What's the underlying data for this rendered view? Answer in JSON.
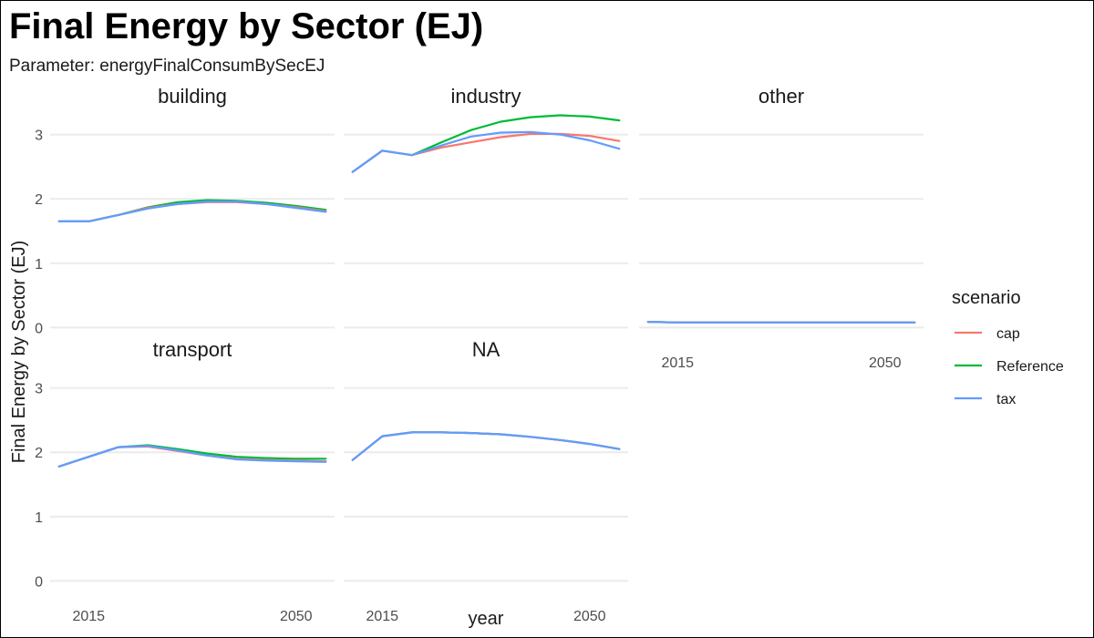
{
  "chart_data": {
    "type": "line",
    "title": "Final Energy by Sector (EJ)",
    "subtitle": "Parameter: energyFinalConsumBySecEJ",
    "xlabel": "year",
    "ylabel": "Final Energy by Sector (EJ)",
    "x": [
      2010,
      2015,
      2020,
      2025,
      2030,
      2035,
      2040,
      2045,
      2050,
      2055
    ],
    "xticks": [
      "2015",
      "2050"
    ],
    "xtick_values": [
      2015,
      2050
    ],
    "ylim": [
      -0.15,
      3.25
    ],
    "yticks": [
      0,
      1,
      2,
      3
    ],
    "grid": true,
    "legend": {
      "title": "scenario",
      "position": "right",
      "entries": [
        "cap",
        "Reference",
        "tax"
      ]
    },
    "colors": {
      "cap": "#F8766D",
      "Reference": "#00BA38",
      "tax": "#619CFF"
    },
    "facets": [
      {
        "name": "building",
        "series": [
          {
            "name": "cap",
            "values": [
              1.65,
              1.65,
              1.75,
              1.86,
              1.92,
              1.95,
              1.95,
              1.92,
              1.87,
              1.81
            ]
          },
          {
            "name": "Reference",
            "values": [
              1.65,
              1.65,
              1.75,
              1.87,
              1.95,
              1.98,
              1.97,
              1.94,
              1.89,
              1.83
            ]
          },
          {
            "name": "tax",
            "values": [
              1.65,
              1.65,
              1.75,
              1.85,
              1.92,
              1.96,
              1.96,
              1.92,
              1.86,
              1.8
            ]
          }
        ]
      },
      {
        "name": "industry",
        "series": [
          {
            "name": "cap",
            "values": [
              2.42,
              2.75,
              2.68,
              2.8,
              2.88,
              2.96,
              3.01,
              3.01,
              2.98,
              2.9
            ]
          },
          {
            "name": "Reference",
            "values": [
              2.42,
              2.75,
              2.68,
              2.88,
              3.07,
              3.2,
              3.27,
              3.3,
              3.28,
              3.22
            ]
          },
          {
            "name": "tax",
            "values": [
              2.42,
              2.75,
              2.68,
              2.83,
              2.97,
              3.03,
              3.04,
              3.0,
              2.91,
              2.78
            ]
          }
        ]
      },
      {
        "name": "other",
        "series": [
          {
            "name": "cap",
            "values": [
              0.09,
              0.08,
              0.08,
              0.08,
              0.08,
              0.08,
              0.08,
              0.08,
              0.08,
              0.08
            ]
          },
          {
            "name": "Reference",
            "values": [
              0.09,
              0.08,
              0.08,
              0.08,
              0.08,
              0.08,
              0.08,
              0.08,
              0.08,
              0.08
            ]
          },
          {
            "name": "tax",
            "values": [
              0.09,
              0.08,
              0.08,
              0.08,
              0.08,
              0.08,
              0.08,
              0.08,
              0.08,
              0.08
            ]
          }
        ]
      },
      {
        "name": "transport",
        "series": [
          {
            "name": "cap",
            "values": [
              1.78,
              1.93,
              2.08,
              2.09,
              2.02,
              1.95,
              1.9,
              1.88,
              1.87,
              1.86
            ]
          },
          {
            "name": "Reference",
            "values": [
              1.78,
              1.93,
              2.08,
              2.11,
              2.05,
              1.98,
              1.93,
              1.91,
              1.9,
              1.9
            ]
          },
          {
            "name": "tax",
            "values": [
              1.78,
              1.93,
              2.08,
              2.1,
              2.03,
              1.95,
              1.89,
              1.87,
              1.86,
              1.85
            ]
          }
        ]
      },
      {
        "name": "NA",
        "series": [
          {
            "name": "cap",
            "values": [
              1.88,
              2.25,
              2.31,
              2.31,
              2.3,
              2.28,
              2.24,
              2.19,
              2.13,
              2.05
            ]
          },
          {
            "name": "Reference",
            "values": [
              1.88,
              2.25,
              2.31,
              2.31,
              2.3,
              2.28,
              2.24,
              2.19,
              2.13,
              2.05
            ]
          },
          {
            "name": "tax",
            "values": [
              1.88,
              2.25,
              2.31,
              2.31,
              2.3,
              2.28,
              2.24,
              2.19,
              2.13,
              2.05
            ]
          }
        ]
      }
    ]
  }
}
